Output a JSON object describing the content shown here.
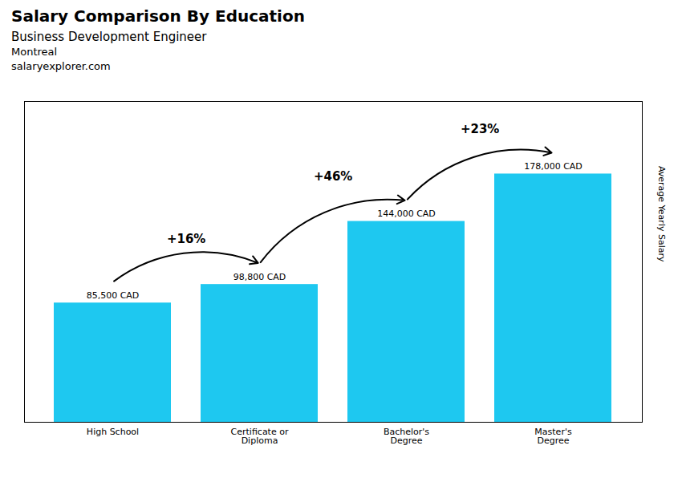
{
  "chart_data": {
    "type": "bar",
    "title": "Salary Comparison By Education",
    "subtitle": "Business Development Engineer",
    "ylabel": "Average Yearly Salary",
    "categories": [
      "High School",
      "Certificate or\nDiploma",
      "Bachelor's\nDegree",
      "Master's\nDegree"
    ],
    "values": [
      85500,
      98800,
      144000,
      178000
    ],
    "value_labels": [
      "85,500 CAD",
      "98,800 CAD",
      "144,000 CAD",
      "178,000 CAD"
    ],
    "data_labels": true,
    "color": "#1ec8f0",
    "ylim": [
      0,
      230000
    ],
    "tick_labels": "x",
    "grid": false,
    "annotations": [
      {
        "text": "Montreal"
      },
      {
        "text": "salaryexplorer.com"
      },
      {
        "text": "+16%",
        "from": "High School",
        "to": "Certificate or\nDiploma"
      },
      {
        "text": "+46%",
        "from": "Certificate or\nDiploma",
        "to": "Bachelor's\nDegree"
      },
      {
        "text": "+23%",
        "from": "Bachelor's\nDegree",
        "to": "Master's\nDegree"
      }
    ]
  }
}
